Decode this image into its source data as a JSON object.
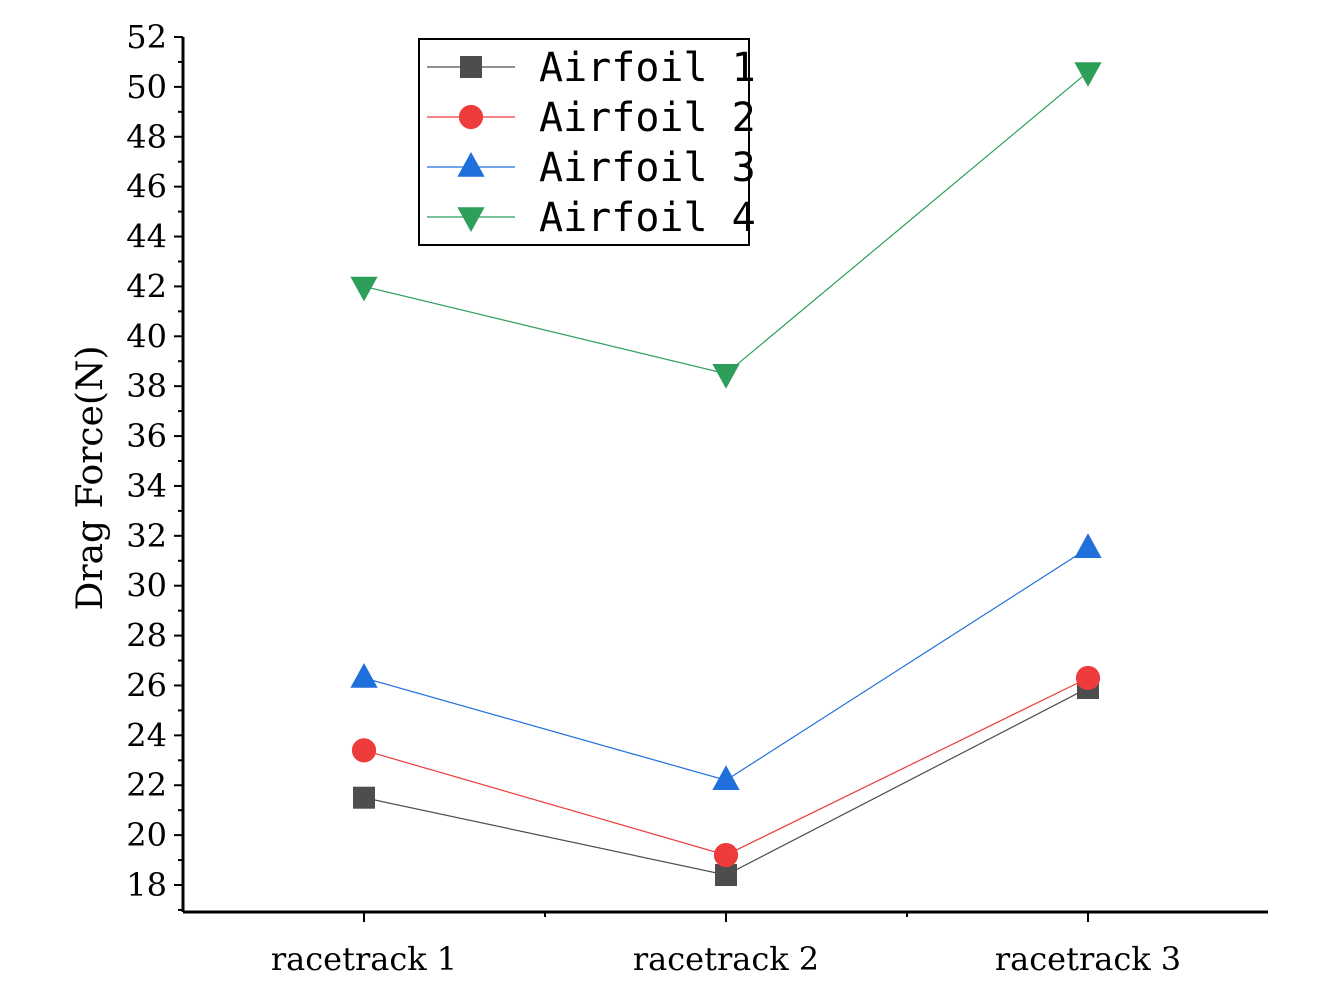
{
  "chart_data": {
    "type": "line",
    "categories": [
      "racetrack 1",
      "racetrack 2",
      "racetrack 3"
    ],
    "ylabel": "Drag Force(N)",
    "xlabel": "",
    "ylim": [
      17,
      52
    ],
    "yticks": [
      18,
      20,
      22,
      24,
      26,
      28,
      30,
      32,
      34,
      36,
      38,
      40,
      42,
      44,
      46,
      48,
      50,
      52
    ],
    "grid": false,
    "legend_position": "top-left",
    "series": [
      {
        "name": "Airfoil 1",
        "marker": "square",
        "color": "#4d4d4d",
        "values": [
          21.5,
          18.4,
          25.9
        ]
      },
      {
        "name": "Airfoil 2",
        "marker": "circle",
        "color": "#ee3b3b",
        "values": [
          23.4,
          19.2,
          26.3
        ]
      },
      {
        "name": "Airfoil 3",
        "marker": "triangle-up",
        "color": "#1f6fdc",
        "values": [
          26.3,
          22.2,
          31.5
        ]
      },
      {
        "name": "Airfoil 4",
        "marker": "triangle-down",
        "color": "#2e9e5b",
        "values": [
          42.0,
          38.5,
          50.6
        ]
      }
    ]
  }
}
